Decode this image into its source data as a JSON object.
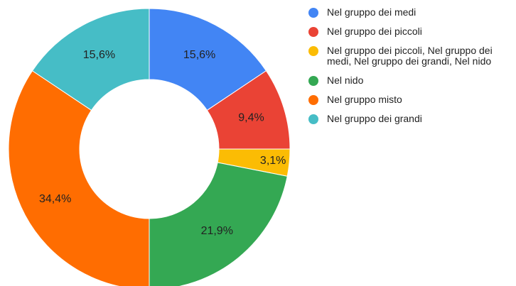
{
  "chart_data": {
    "type": "donut",
    "categories": [
      "Nel gruppo dei medi",
      "Nel gruppo dei piccoli",
      "Nel gruppo dei piccoli, Nel gruppo dei medi, Nel gruppo dei grandi, Nel nido",
      "Nel nido",
      "Nel gruppo misto",
      "Nel gruppo dei grandi"
    ],
    "values": [
      15.6,
      9.4,
      3.1,
      21.9,
      34.4,
      15.6
    ],
    "value_labels": [
      "15,6%",
      "9,4%",
      "3,1%",
      "21,9%",
      "34,4%",
      "15,6%"
    ],
    "colors": [
      "#4285f4",
      "#ea4335",
      "#fbbc04",
      "#34a853",
      "#ff6d01",
      "#46bdc6"
    ],
    "legend": "right"
  }
}
